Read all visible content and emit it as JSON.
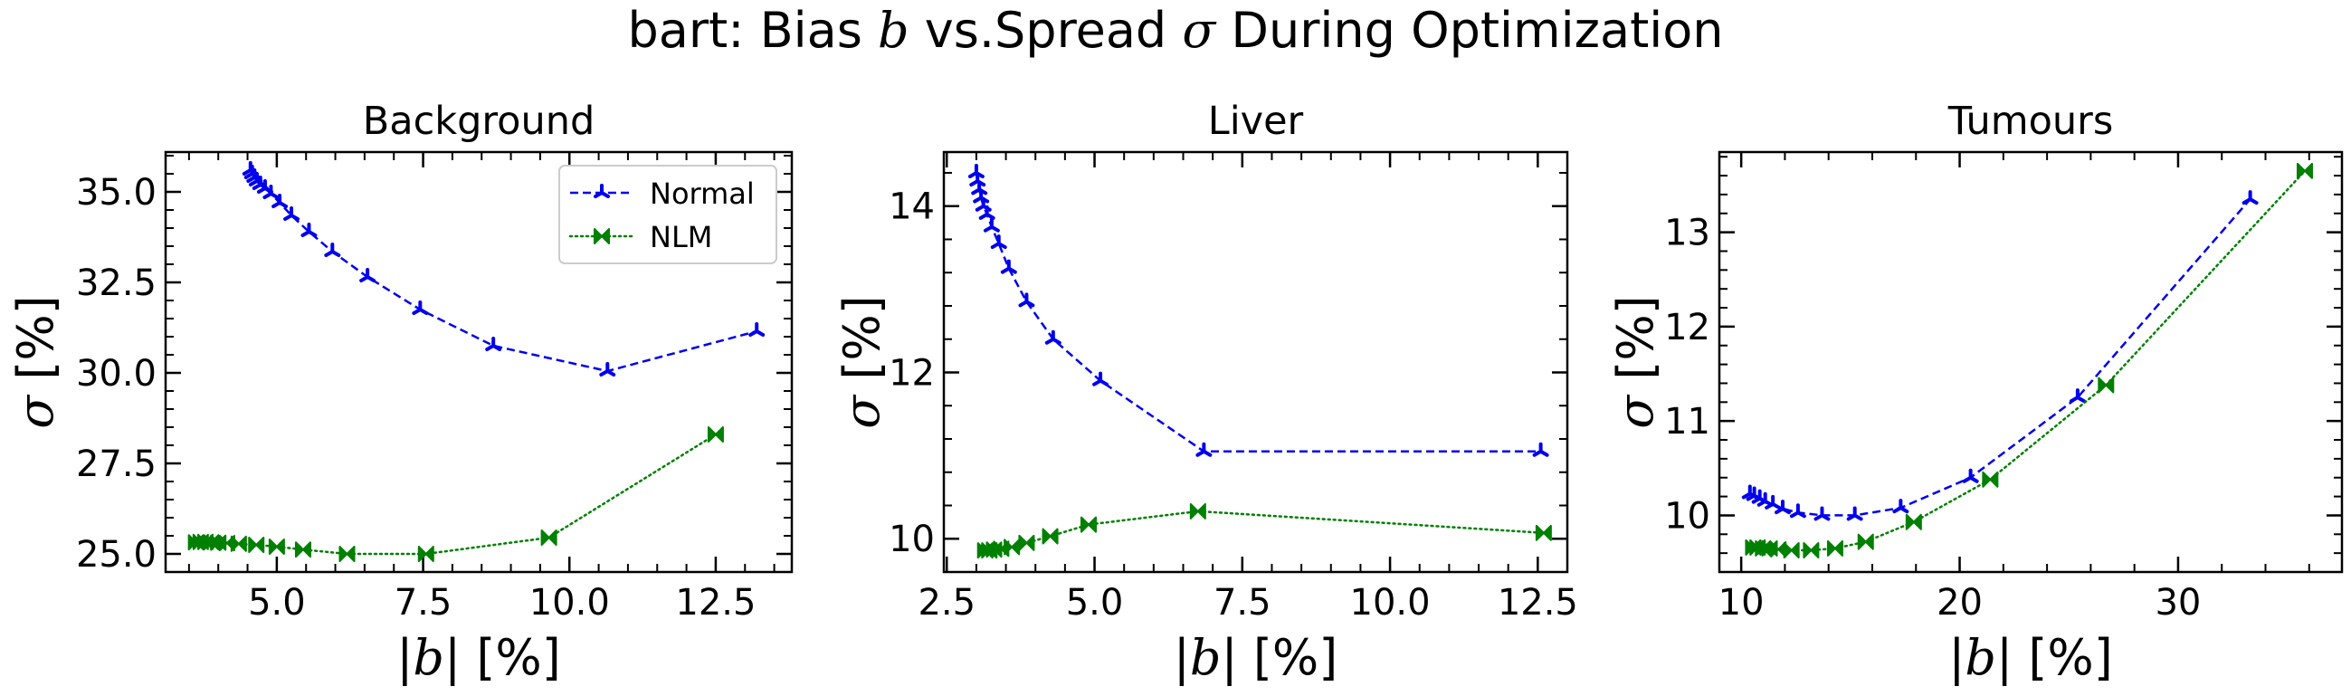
{
  "figure": {
    "title_prefix": "bart: Bias ",
    "title_b": "b",
    "title_mid": " vs.Spread ",
    "title_sigma": "σ",
    "title_suffix": " During Optimization"
  },
  "axis_text": {
    "x_open": "|",
    "x_var": "b",
    "x_close": "| [%]",
    "y_var": "σ",
    "y_unit": " [%]"
  },
  "legend": {
    "normal": "Normal",
    "nlm": "NLM"
  },
  "colors": {
    "normal": "#0000ee",
    "nlm": "#008000"
  },
  "chart_data": [
    {
      "type": "line",
      "title": "Background",
      "xlabel": "|b| [%]",
      "ylabel": "σ [%]",
      "xlim": [
        3.1,
        13.8
      ],
      "ylim": [
        24.5,
        36.1
      ],
      "xticks": [
        5.0,
        7.5,
        10.0,
        12.5
      ],
      "xtick_labels": [
        "5.0",
        "7.5",
        "10.0",
        "12.5"
      ],
      "yticks": [
        25.0,
        27.5,
        30.0,
        32.5,
        35.0
      ],
      "ytick_labels": [
        "25.0",
        "27.5",
        "30.0",
        "32.5",
        "35.0"
      ],
      "legend_position": "upper right",
      "series": [
        {
          "name": "Normal",
          "style": "dashed",
          "marker": "tri_up",
          "x": [
            4.55,
            4.58,
            4.62,
            4.66,
            4.72,
            4.8,
            4.9,
            5.05,
            5.25,
            5.55,
            5.95,
            6.55,
            7.45,
            8.7,
            10.65,
            13.2
          ],
          "y": [
            35.6,
            35.5,
            35.4,
            35.3,
            35.2,
            35.1,
            34.95,
            34.7,
            34.35,
            33.9,
            33.35,
            32.65,
            31.75,
            30.75,
            30.05,
            31.15
          ]
        },
        {
          "name": "NLM",
          "style": "dotted",
          "marker": "bowtie",
          "x": [
            3.62,
            3.7,
            3.78,
            3.88,
            4.0,
            4.15,
            4.35,
            4.65,
            5.0,
            5.45,
            6.2,
            7.55,
            9.65,
            12.5
          ],
          "y": [
            25.32,
            25.33,
            25.33,
            25.32,
            25.31,
            25.3,
            25.28,
            25.25,
            25.2,
            25.12,
            25.0,
            25.0,
            25.45,
            28.3
          ]
        }
      ]
    },
    {
      "type": "line",
      "title": "Liver",
      "xlabel": "|b| [%]",
      "ylabel": "σ [%]",
      "xlim": [
        2.45,
        13.0
      ],
      "ylim": [
        9.6,
        14.65
      ],
      "xticks": [
        2.5,
        5.0,
        7.5,
        10.0,
        12.5
      ],
      "xtick_labels": [
        "2.5",
        "5.0",
        "7.5",
        "10.0",
        "12.5"
      ],
      "yticks": [
        10,
        12,
        14
      ],
      "ytick_labels": [
        "10",
        "12",
        "14"
      ],
      "series": [
        {
          "name": "Normal",
          "style": "dashed",
          "marker": "tri_up",
          "x": [
            3.0,
            3.02,
            3.05,
            3.08,
            3.12,
            3.18,
            3.26,
            3.38,
            3.55,
            3.85,
            4.3,
            5.1,
            6.85,
            12.55
          ],
          "y": [
            14.4,
            14.3,
            14.2,
            14.1,
            14.0,
            13.9,
            13.75,
            13.55,
            13.25,
            12.85,
            12.4,
            11.9,
            11.05,
            11.05
          ]
        },
        {
          "name": "NLM",
          "style": "dotted",
          "marker": "bowtie",
          "x": [
            3.15,
            3.22,
            3.3,
            3.42,
            3.6,
            3.85,
            4.25,
            4.9,
            6.75,
            12.6
          ],
          "y": [
            9.86,
            9.86,
            9.87,
            9.88,
            9.9,
            9.95,
            10.03,
            10.17,
            10.33,
            10.07
          ]
        }
      ]
    },
    {
      "type": "line",
      "title": "Tumours",
      "xlabel": "|b| [%]",
      "ylabel": "σ [%]",
      "xlim": [
        9.0,
        37.5
      ],
      "ylim": [
        9.4,
        13.85
      ],
      "xticks": [
        10,
        20,
        30
      ],
      "xtick_labels": [
        "10",
        "20",
        "30"
      ],
      "yticks": [
        10,
        11,
        12,
        13
      ],
      "ytick_labels": [
        "10",
        "11",
        "12",
        "13"
      ],
      "series": [
        {
          "name": "Normal",
          "style": "dashed",
          "marker": "tri_up",
          "x": [
            10.4,
            10.6,
            10.85,
            11.1,
            11.45,
            11.9,
            12.6,
            13.7,
            15.2,
            17.3,
            20.5,
            25.4,
            33.3
          ],
          "y": [
            10.23,
            10.21,
            10.18,
            10.15,
            10.12,
            10.07,
            10.03,
            10.0,
            10.0,
            10.08,
            10.4,
            11.25,
            13.35
          ]
        },
        {
          "name": "NLM",
          "style": "dotted",
          "marker": "bowtie",
          "x": [
            10.55,
            10.75,
            11.0,
            11.3,
            11.7,
            12.3,
            13.2,
            14.3,
            15.7,
            17.9,
            21.4,
            26.7,
            35.8
          ],
          "y": [
            9.66,
            9.66,
            9.65,
            9.65,
            9.64,
            9.63,
            9.63,
            9.65,
            9.72,
            9.93,
            10.38,
            11.38,
            13.65
          ]
        }
      ]
    }
  ]
}
